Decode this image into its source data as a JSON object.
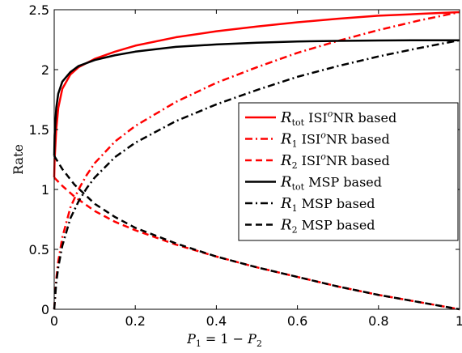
{
  "chart_data": {
    "type": "line",
    "xlabel": "P1 = 1 − P2",
    "xlabel_parts": [
      "P",
      "1",
      " = 1 − ",
      "P",
      "2"
    ],
    "ylabel": "Rate",
    "xlim": [
      0,
      1
    ],
    "ylim": [
      0,
      2.5
    ],
    "xticks": [
      0,
      0.2,
      0.4,
      0.6,
      0.8,
      1
    ],
    "xtick_labels": [
      "0",
      "0.2",
      "0.4",
      "0.6",
      "0.8",
      "1"
    ],
    "yticks": [
      0,
      0.5,
      1,
      1.5,
      2,
      2.5
    ],
    "ytick_labels": [
      "0",
      "0.5",
      "1",
      "1.5",
      "2",
      "2.5"
    ],
    "grid": false,
    "legend_position": "center-right",
    "series": [
      {
        "name": "R_tot ISI^oNR based",
        "legend": {
          "sym": "R",
          "sub": "tot",
          "pre": " ISI",
          "sup": "o",
          "post": "NR based"
        },
        "color": "#ff0000",
        "dash": "solid",
        "x": [
          0,
          0.001,
          0.005,
          0.01,
          0.02,
          0.04,
          0.06,
          0.1,
          0.15,
          0.2,
          0.3,
          0.4,
          0.5,
          0.6,
          0.7,
          0.8,
          0.9,
          1.0
        ],
        "y": [
          1.1,
          1.25,
          1.5,
          1.68,
          1.84,
          1.96,
          2.02,
          2.09,
          2.15,
          2.2,
          2.27,
          2.32,
          2.36,
          2.395,
          2.425,
          2.45,
          2.465,
          2.48
        ]
      },
      {
        "name": "R_1 ISI^oNR based",
        "legend": {
          "sym": "R",
          "sub": "1",
          "pre": " ISI",
          "sup": "o",
          "post": "NR based"
        },
        "color": "#ff0000",
        "dash": "dashdot",
        "x": [
          0,
          0.005,
          0.01,
          0.02,
          0.04,
          0.06,
          0.08,
          0.1,
          0.15,
          0.2,
          0.3,
          0.4,
          0.5,
          0.6,
          0.7,
          0.8,
          0.9,
          1.0
        ],
        "y": [
          0,
          0.25,
          0.4,
          0.6,
          0.85,
          1.0,
          1.12,
          1.22,
          1.4,
          1.53,
          1.73,
          1.89,
          2.02,
          2.14,
          2.24,
          2.33,
          2.41,
          2.48
        ]
      },
      {
        "name": "R_2 ISI^oNR based",
        "legend": {
          "sym": "R",
          "sub": "2",
          "pre": " ISI",
          "sup": "o",
          "post": "NR based"
        },
        "color": "#ff0000",
        "dash": "dashed",
        "x": [
          0,
          0.02,
          0.05,
          0.1,
          0.15,
          0.2,
          0.3,
          0.4,
          0.5,
          0.6,
          0.7,
          0.8,
          0.9,
          1.0
        ],
        "y": [
          1.1,
          1.03,
          0.94,
          0.82,
          0.73,
          0.66,
          0.54,
          0.44,
          0.35,
          0.27,
          0.19,
          0.12,
          0.06,
          0
        ]
      },
      {
        "name": "R_tot MSP based",
        "legend": {
          "sym": "R",
          "sub": "tot",
          "pre": " MSP based",
          "sup": "",
          "post": ""
        },
        "color": "#000000",
        "dash": "solid",
        "x": [
          0,
          0.001,
          0.005,
          0.01,
          0.02,
          0.04,
          0.06,
          0.1,
          0.15,
          0.2,
          0.3,
          0.4,
          0.5,
          0.6,
          0.7,
          0.8,
          0.9,
          1.0
        ],
        "y": [
          1.28,
          1.45,
          1.68,
          1.8,
          1.9,
          1.98,
          2.03,
          2.08,
          2.12,
          2.15,
          2.19,
          2.21,
          2.225,
          2.235,
          2.24,
          2.243,
          2.245,
          2.245
        ]
      },
      {
        "name": "R_1 MSP based",
        "legend": {
          "sym": "R",
          "sub": "1",
          "pre": " MSP based",
          "sup": "",
          "post": ""
        },
        "color": "#000000",
        "dash": "dashdot",
        "x": [
          0,
          0.005,
          0.01,
          0.02,
          0.04,
          0.06,
          0.08,
          0.1,
          0.15,
          0.2,
          0.3,
          0.4,
          0.5,
          0.6,
          0.7,
          0.8,
          0.9,
          1.0
        ],
        "y": [
          0,
          0.22,
          0.35,
          0.53,
          0.76,
          0.9,
          1.01,
          1.1,
          1.27,
          1.39,
          1.57,
          1.71,
          1.83,
          1.94,
          2.03,
          2.11,
          2.18,
          2.245
        ]
      },
      {
        "name": "R_2 MSP based",
        "legend": {
          "sym": "R",
          "sub": "2",
          "pre": " MSP based",
          "sup": "",
          "post": ""
        },
        "color": "#000000",
        "dash": "dashed",
        "x": [
          0,
          0.02,
          0.05,
          0.1,
          0.15,
          0.2,
          0.3,
          0.4,
          0.5,
          0.6,
          0.7,
          0.8,
          0.9,
          1.0
        ],
        "y": [
          1.28,
          1.17,
          1.04,
          0.88,
          0.77,
          0.68,
          0.55,
          0.44,
          0.35,
          0.27,
          0.19,
          0.12,
          0.06,
          0
        ]
      }
    ]
  }
}
